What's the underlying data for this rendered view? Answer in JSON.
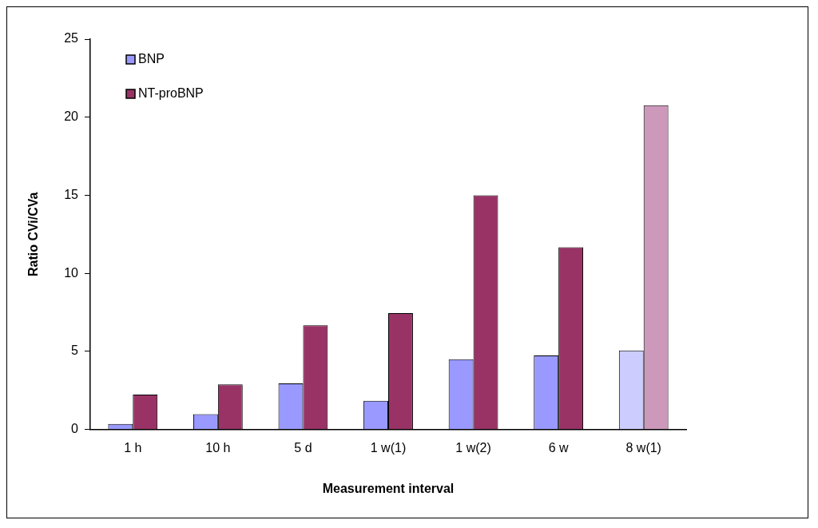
{
  "chart_data": {
    "type": "bar",
    "xlabel": "Measurement interval",
    "ylabel": "Ratio CVi/CVa",
    "categories": [
      "1 h",
      "10 h",
      "5 d",
      "1 w(1)",
      "1 w(2)",
      "6 w",
      "8 w(1)"
    ],
    "series": [
      {
        "name": "BNP",
        "color": "#9999ff",
        "colors": [
          "#9999ff",
          "#9999ff",
          "#9999ff",
          "#9999ff",
          "#9999ff",
          "#9999ff",
          "#ccccff"
        ],
        "values": [
          0.35,
          0.98,
          2.95,
          1.83,
          4.5,
          4.74,
          5.06
        ]
      },
      {
        "name": "NT-proBNP",
        "color": "#993366",
        "colors": [
          "#993366",
          "#993366",
          "#993366",
          "#993366",
          "#993366",
          "#993366",
          "#cc99bb"
        ],
        "values": [
          2.23,
          2.88,
          6.67,
          7.45,
          15.0,
          11.67,
          20.77
        ]
      }
    ],
    "ylim": [
      0,
      25
    ],
    "yticks": [
      0,
      5,
      10,
      15,
      20,
      25
    ],
    "grid": false,
    "legend": "top left"
  }
}
